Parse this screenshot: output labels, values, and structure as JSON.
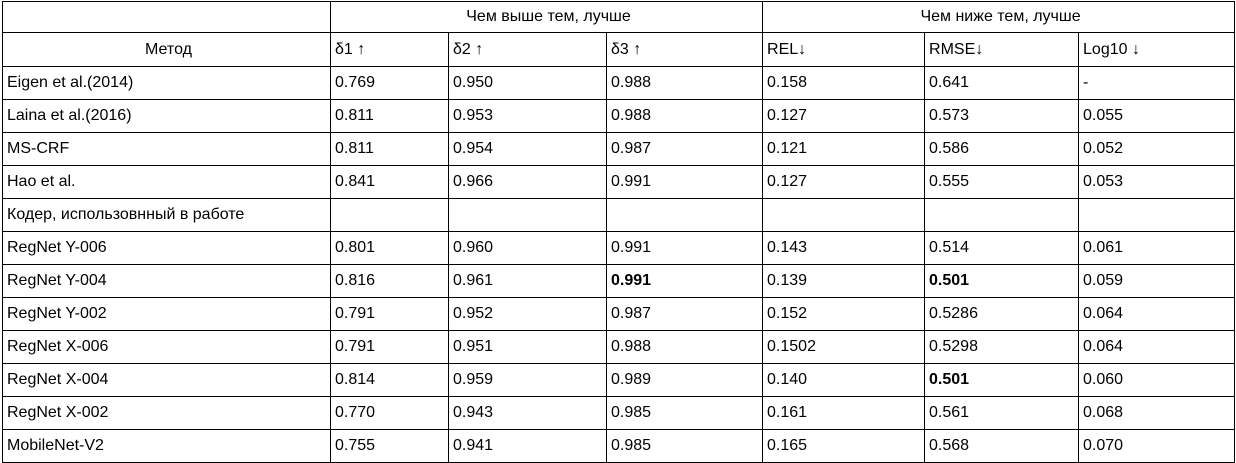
{
  "header": {
    "higher_better": "Чем выше тем, лучше",
    "lower_better": "Чем ниже тем, лучше",
    "columns": [
      "Метод",
      "δ1 ↑",
      "δ2 ↑",
      "δ3 ↑",
      "REL↓",
      "RMSE↓",
      "Log10 ↓"
    ]
  },
  "rows": [
    {
      "cells": [
        "Eigen et al.(2014)",
        "0.769",
        "0.950",
        "0.988",
        "0.158",
        "0.641",
        "-"
      ],
      "bold": []
    },
    {
      "cells": [
        "Laina et al.(2016)",
        "0.811",
        " 0.953",
        "0.988",
        "0.127",
        "0.573",
        "0.055"
      ],
      "bold": []
    },
    {
      "cells": [
        "MS-CRF",
        "0.811",
        "0.954",
        "0.987",
        "0.121",
        "0.586",
        "0.052"
      ],
      "bold": []
    },
    {
      "cells": [
        "Hao et al.",
        "0.841",
        "0.966",
        "0.991",
        "0.127",
        "0.555",
        "0.053"
      ],
      "bold": []
    },
    {
      "cells": [
        "Кодер, использовнный в работе",
        "",
        "",
        "",
        "",
        "",
        ""
      ],
      "bold": []
    },
    {
      "cells": [
        "RegNet Y-006",
        "0.801",
        "0.960",
        "0.991",
        "0.143",
        "0.514",
        "0.061"
      ],
      "bold": []
    },
    {
      "cells": [
        "RegNet Y-004",
        "0.816",
        "0.961",
        "0.991",
        "0.139",
        "0.501",
        "0.059"
      ],
      "bold": [
        3,
        5
      ]
    },
    {
      "cells": [
        "RegNet Y-002",
        "0.791",
        "0.952",
        "0.987",
        "0.152",
        "0.5286",
        "0.064"
      ],
      "bold": []
    },
    {
      "cells": [
        "RegNet X-006",
        "0.791",
        "0.951",
        "0.988",
        "0.1502",
        "0.5298",
        "0.064"
      ],
      "bold": []
    },
    {
      "cells": [
        "RegNet X-004",
        "0.814",
        "0.959",
        "0.989",
        "0.140",
        "0.501",
        "0.060"
      ],
      "bold": [
        5
      ]
    },
    {
      "cells": [
        "RegNet X-002",
        "0.770",
        "0.943",
        "0.985",
        "0.161",
        "0.561",
        "0.068"
      ],
      "bold": []
    },
    {
      "cells": [
        "MobileNet-V2",
        "0.755",
        "0.941",
        "0.985",
        "0.165",
        "0.568",
        "0.070"
      ],
      "bold": []
    }
  ]
}
